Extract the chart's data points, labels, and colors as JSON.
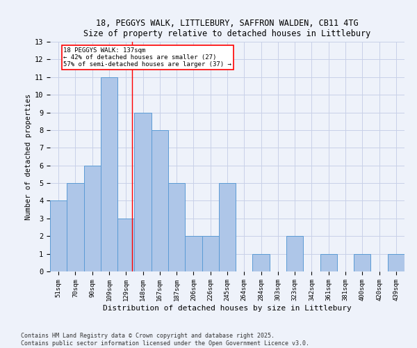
{
  "title_line1": "18, PEGGYS WALK, LITTLEBURY, SAFFRON WALDEN, CB11 4TG",
  "title_line2": "Size of property relative to detached houses in Littlebury",
  "xlabel": "Distribution of detached houses by size in Littlebury",
  "ylabel": "Number of detached properties",
  "bin_labels": [
    "51sqm",
    "70sqm",
    "90sqm",
    "109sqm",
    "129sqm",
    "148sqm",
    "167sqm",
    "187sqm",
    "206sqm",
    "226sqm",
    "245sqm",
    "264sqm",
    "284sqm",
    "303sqm",
    "323sqm",
    "342sqm",
    "361sqm",
    "381sqm",
    "400sqm",
    "420sqm",
    "439sqm"
  ],
  "bin_values": [
    4,
    5,
    6,
    11,
    3,
    9,
    8,
    5,
    2,
    2,
    5,
    0,
    1,
    0,
    2,
    0,
    1,
    0,
    1,
    0,
    1
  ],
  "bar_color": "#aec6e8",
  "bar_edge_color": "#5b9bd5",
  "reference_line_x": 4.35,
  "annotation_text": "18 PEGGYS WALK: 137sqm\n← 42% of detached houses are smaller (27)\n57% of semi-detached houses are larger (37) →",
  "annotation_box_color": "white",
  "annotation_box_edge_color": "red",
  "reference_line_color": "red",
  "ylim": [
    0,
    13
  ],
  "yticks": [
    0,
    1,
    2,
    3,
    4,
    5,
    6,
    7,
    8,
    9,
    10,
    11,
    12,
    13
  ],
  "footer": "Contains HM Land Registry data © Crown copyright and database right 2025.\nContains public sector information licensed under the Open Government Licence v3.0.",
  "background_color": "#eef2fa",
  "grid_color": "#c8d0e8"
}
